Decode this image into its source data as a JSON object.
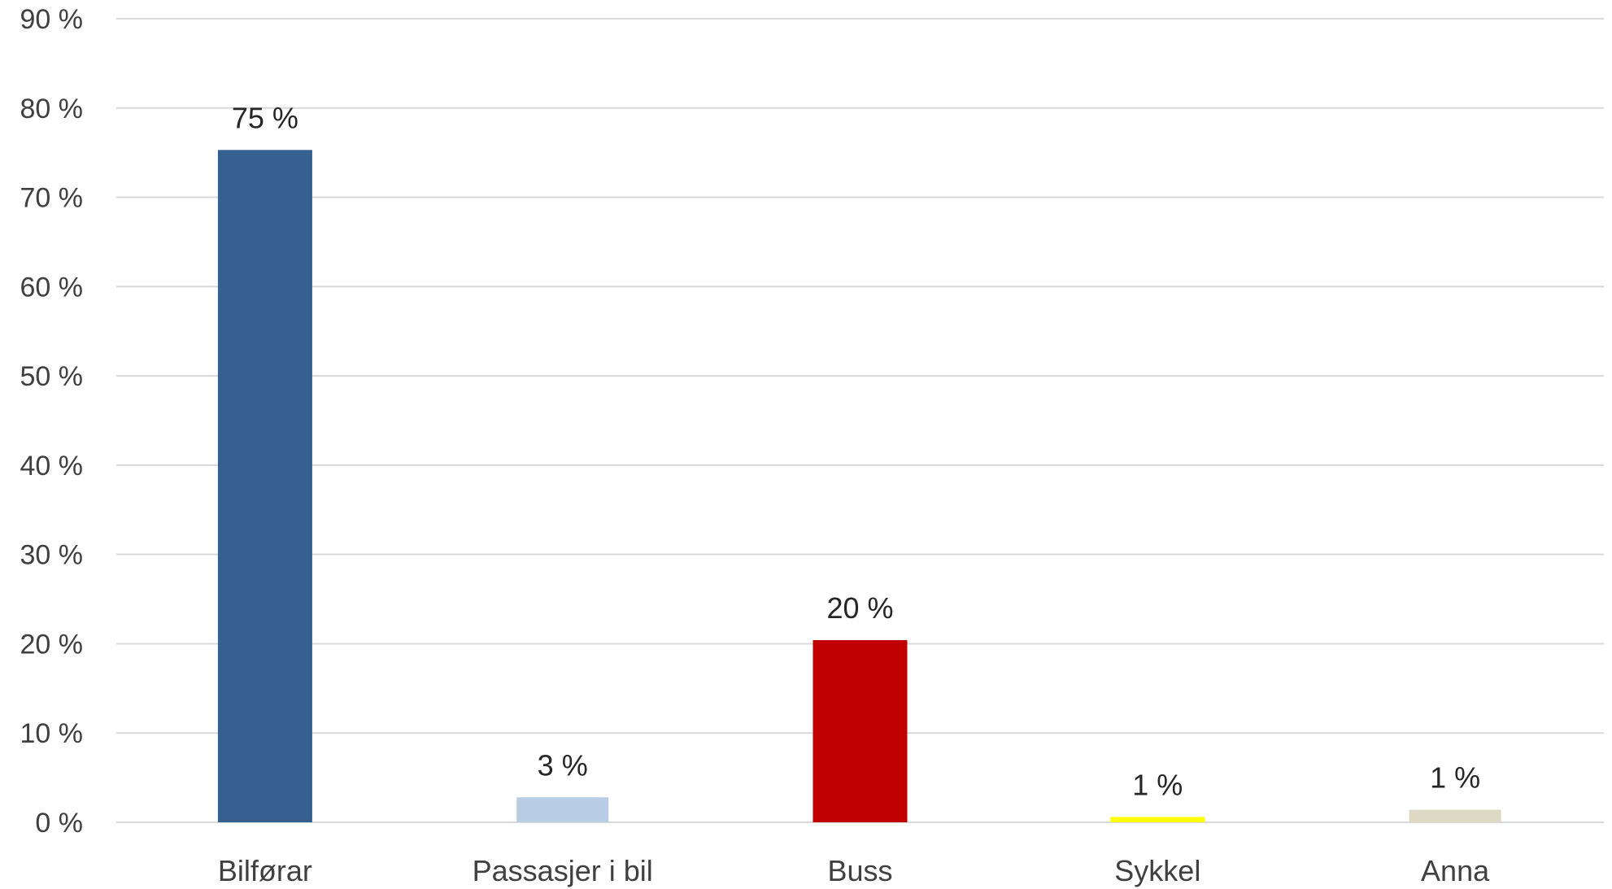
{
  "chart_data": {
    "type": "bar",
    "categories": [
      "Bilførar",
      "Passasjer i bil",
      "Buss",
      "Sykkel",
      "Anna"
    ],
    "values": [
      75.3,
      2.8,
      20.4,
      0.6,
      1.4
    ],
    "data_labels": [
      "75 %",
      "3 %",
      "20 %",
      "1 %",
      "1 %"
    ],
    "colors": [
      "#36608f",
      "#b8cce4",
      "#c00000",
      "#ffff00",
      "#ddd9c4"
    ],
    "title": "",
    "xlabel": "",
    "ylabel": "",
    "ylim": [
      0,
      90
    ],
    "y_ticks": [
      0,
      10,
      20,
      30,
      40,
      50,
      60,
      70,
      80,
      90
    ],
    "y_tick_labels": [
      "0 %",
      "10 %",
      "20 %",
      "30 %",
      "40 %",
      "50 %",
      "60 %",
      "70 %",
      "80 %",
      "90 %"
    ],
    "grid": true,
    "legend": "none"
  }
}
